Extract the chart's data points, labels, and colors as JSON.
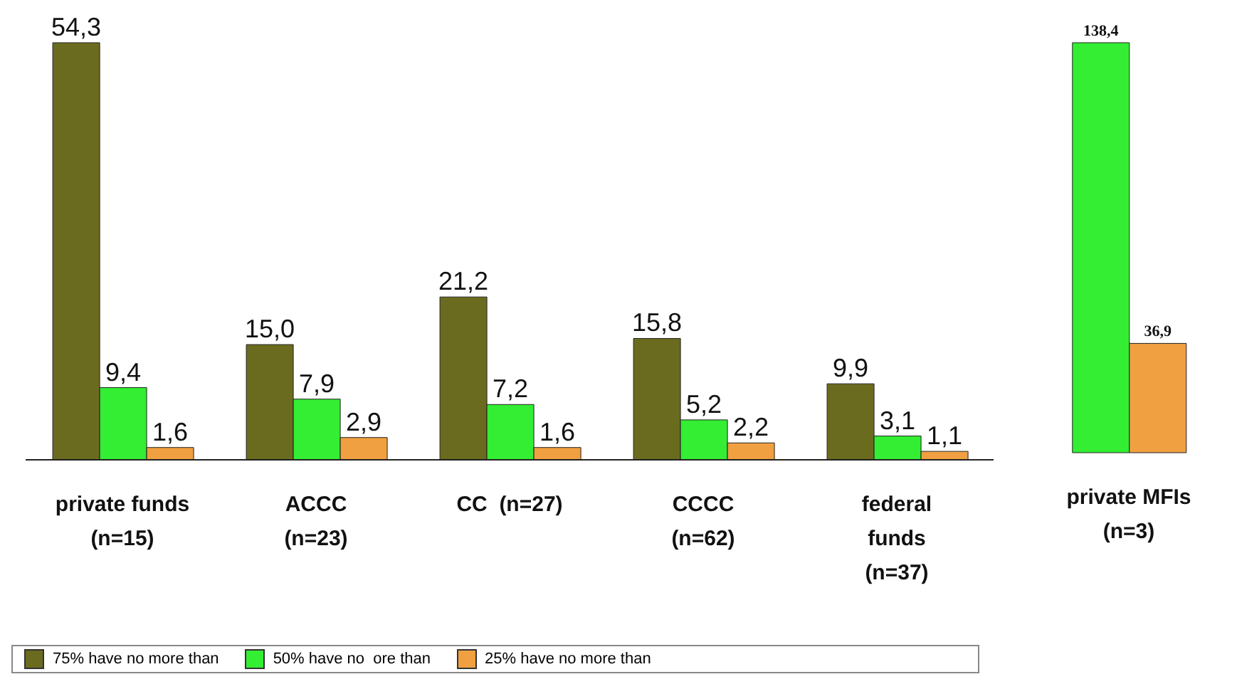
{
  "chart_data": [
    {
      "type": "bar",
      "categories": [
        "private funds\n(n=15)",
        "ACCC\n(n=23)",
        "CC  (n=27)",
        "CCCC\n(n=62)",
        "federal\nfunds\n(n=37)"
      ],
      "series": [
        {
          "name": "75% have no more than",
          "color": "#6b6b1f",
          "values": [
            54.3,
            15.0,
            21.2,
            15.8,
            9.9
          ],
          "value_labels": [
            "54,3",
            "15,0",
            "21,2",
            "15,8",
            "9,9"
          ]
        },
        {
          "name": "50% have no  ore than",
          "color": "#33ee33",
          "values": [
            9.4,
            7.9,
            7.2,
            5.2,
            3.1
          ],
          "value_labels": [
            "9,4",
            "7,9",
            "7,2",
            "5,2",
            "3,1"
          ]
        },
        {
          "name": "25% have no more than",
          "color": "#f0a040",
          "values": [
            1.6,
            2.9,
            1.6,
            2.2,
            1.1
          ],
          "value_labels": [
            "1,6",
            "2,9",
            "1,6",
            "2,2",
            "1,1"
          ]
        }
      ],
      "legend": "bottom"
    },
    {
      "type": "bar",
      "categories": [
        "private MFIs\n(n=3)"
      ],
      "series": [
        {
          "color": "#33ee33",
          "values": [
            138.4
          ],
          "value_labels": [
            "138,4"
          ]
        },
        {
          "color": "#f0a040",
          "values": [
            36.9
          ],
          "value_labels": [
            "36,9"
          ]
        }
      ]
    }
  ]
}
